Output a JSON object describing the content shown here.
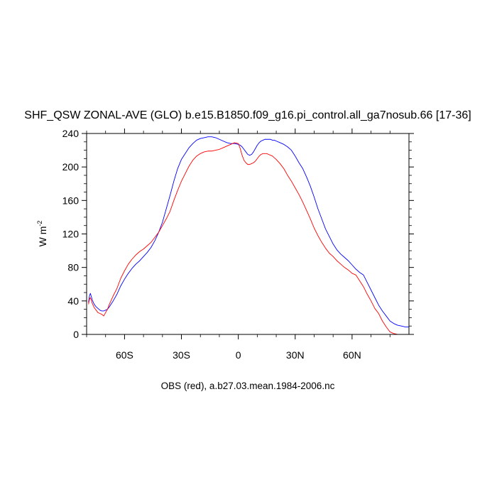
{
  "chart_data": {
    "type": "line",
    "title": "SHF_QSW ZONAL-AVE (GLO) b.e15.B1850.f09_g16.pi_control.all_ga7nosub.66 [17-36]",
    "ylabel": "W m",
    "ylabel_sup": "-2",
    "xlabel": "OBS (red), a.b27.03.mean.1984-2006.nc",
    "xlim": [
      -80,
      90
    ],
    "ylim": [
      0,
      240
    ],
    "x_ticks": [
      {
        "value": -60,
        "label": "60S"
      },
      {
        "value": -30,
        "label": "30S"
      },
      {
        "value": 0,
        "label": "0"
      },
      {
        "value": 30,
        "label": "30N"
      },
      {
        "value": 60,
        "label": "60N"
      }
    ],
    "y_ticks": [
      {
        "value": 0,
        "label": "0"
      },
      {
        "value": 40,
        "label": "40"
      },
      {
        "value": 80,
        "label": "80"
      },
      {
        "value": 120,
        "label": "120"
      },
      {
        "value": 160,
        "label": "160"
      },
      {
        "value": 200,
        "label": "200"
      },
      {
        "value": 240,
        "label": "240"
      }
    ],
    "grid": false,
    "series": [
      {
        "color": "#0000ff",
        "x": [
          -79,
          -78.5,
          -78,
          -77,
          -76,
          -75,
          -74,
          -73,
          -72,
          -71,
          -70,
          -69,
          -68,
          -66,
          -64,
          -62,
          -60,
          -58,
          -56,
          -54,
          -52,
          -50,
          -48,
          -46,
          -44,
          -42,
          -40,
          -38,
          -36,
          -34,
          -32,
          -30,
          -28,
          -26,
          -24,
          -22,
          -20,
          -18,
          -16,
          -14,
          -12,
          -10,
          -8,
          -6,
          -4,
          -2,
          0,
          1,
          2,
          3,
          4,
          5,
          6,
          7,
          8,
          9,
          10,
          11,
          12,
          13,
          14,
          15,
          16,
          17,
          18,
          19,
          20,
          22,
          24,
          26,
          28,
          30,
          32,
          34,
          36,
          38,
          40,
          42,
          44,
          46,
          48,
          50,
          52,
          54,
          56,
          58,
          60,
          62,
          64,
          66,
          68,
          70,
          72,
          74,
          76,
          78,
          80,
          82,
          84,
          86,
          88,
          90
        ],
        "y": [
          38,
          46,
          49,
          41,
          36,
          33,
          31,
          29,
          28,
          28,
          29,
          30,
          33,
          40,
          48,
          58,
          66,
          73,
          79,
          84,
          88,
          93,
          98,
          104,
          112,
          122,
          134,
          150,
          166,
          183,
          198,
          209,
          216,
          223,
          228,
          232,
          234,
          235,
          236,
          236,
          235,
          233,
          231,
          229,
          228,
          228,
          227,
          226,
          224,
          221,
          218,
          215,
          214,
          215,
          218,
          222,
          226,
          229,
          231,
          232,
          233,
          233,
          233,
          233,
          232,
          232,
          231,
          229,
          227,
          224,
          220,
          213,
          205,
          198,
          188,
          177,
          164,
          150,
          138,
          126,
          117,
          108,
          101,
          96,
          92,
          88,
          83,
          78,
          74,
          71,
          62,
          53,
          44,
          35,
          28,
          22,
          16,
          13,
          11,
          10,
          9,
          9
        ]
      },
      {
        "color": "#ff0000",
        "x": [
          -79,
          -78.5,
          -78,
          -77,
          -76,
          -75,
          -74,
          -73,
          -72,
          -71,
          -70,
          -69,
          -68,
          -66,
          -64,
          -62,
          -60,
          -58,
          -56,
          -54,
          -52,
          -50,
          -48,
          -46,
          -44,
          -42,
          -40,
          -38,
          -36,
          -34,
          -32,
          -30,
          -28,
          -26,
          -24,
          -22,
          -20,
          -18,
          -16,
          -14,
          -12,
          -10,
          -8,
          -6,
          -4,
          -2,
          0,
          1,
          2,
          3,
          4,
          5,
          6,
          7,
          8,
          9,
          10,
          11,
          12,
          13,
          14,
          15,
          16,
          17,
          18,
          19,
          20,
          22,
          24,
          26,
          28,
          30,
          32,
          34,
          36,
          38,
          40,
          42,
          44,
          46,
          48,
          50,
          52,
          54,
          56,
          58,
          60,
          62,
          64,
          66,
          68,
          70,
          72,
          74,
          76,
          78,
          80,
          82,
          84,
          86,
          88,
          90
        ],
        "y": [
          36,
          42,
          44,
          37,
          32,
          29,
          26,
          25,
          24,
          22,
          26,
          30,
          36,
          46,
          55,
          67,
          76,
          84,
          90,
          95,
          99,
          102,
          106,
          110,
          116,
          122,
          130,
          138,
          147,
          160,
          172,
          183,
          192,
          201,
          208,
          213,
          216,
          218,
          219,
          219,
          220,
          221,
          223,
          225,
          227,
          229,
          228,
          222,
          214,
          208,
          205,
          203,
          203,
          204,
          205,
          207,
          210,
          213,
          215,
          216,
          216,
          216,
          215,
          214,
          213,
          211,
          209,
          204,
          198,
          190,
          183,
          175,
          167,
          158,
          148,
          138,
          127,
          118,
          110,
          103,
          97,
          93,
          88,
          84,
          80,
          77,
          73,
          71,
          64,
          57,
          48,
          40,
          31,
          25,
          16,
          9,
          3,
          1,
          0,
          0,
          0,
          0
        ]
      }
    ]
  }
}
